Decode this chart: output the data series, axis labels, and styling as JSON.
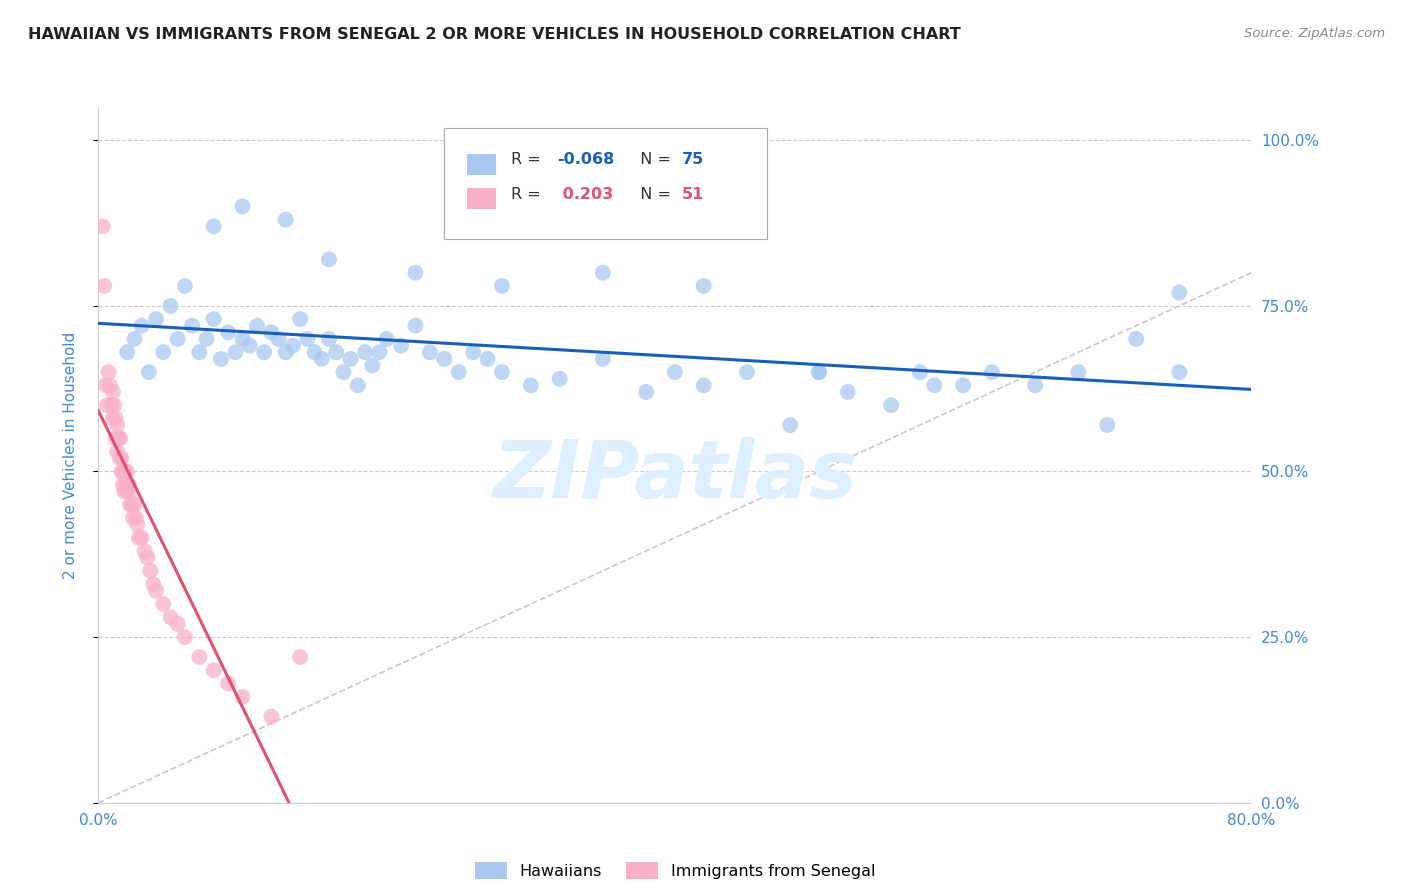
{
  "title": "HAWAIIAN VS IMMIGRANTS FROM SENEGAL 2 OR MORE VEHICLES IN HOUSEHOLD CORRELATION CHART",
  "source_text": "Source: ZipAtlas.com",
  "ylabel": "2 or more Vehicles in Household",
  "xmin": 0.0,
  "xmax": 0.8,
  "ymin": 0.0,
  "ymax": 1.05,
  "yticks": [
    0.0,
    0.25,
    0.5,
    0.75,
    1.0
  ],
  "ytick_labels_right": [
    "0.0%",
    "25.0%",
    "50.0%",
    "75.0%",
    "100.0%"
  ],
  "xtick_positions": [
    0.0,
    0.1,
    0.2,
    0.3,
    0.4,
    0.5,
    0.6,
    0.7,
    0.8
  ],
  "xtick_labels": [
    "0.0%",
    "",
    "",
    "",
    "",
    "",
    "",
    "",
    "80.0%"
  ],
  "hawaiians_R": -0.068,
  "hawaiians_N": 75,
  "senegal_R": 0.203,
  "senegal_N": 51,
  "hawaiians_color": "#a8c8f0",
  "senegal_color": "#f8b0c8",
  "hawaiians_line_color": "#1a5eb8",
  "senegal_line_color": "#e05070",
  "diagonal_color": "#c8c8c8",
  "background_color": "#ffffff",
  "grid_color": "#cccccc",
  "title_color": "#222222",
  "ylabel_color": "#4488cc",
  "tick_label_color": "#4488cc",
  "source_color": "#888888",
  "watermark_color": "#ddeeff",
  "legend_box_color_hawaiians": "#a8c8f0",
  "legend_box_color_senegal": "#f8b0c8",
  "hawaiians_x": [
    0.02,
    0.025,
    0.03,
    0.035,
    0.04,
    0.045,
    0.05,
    0.055,
    0.06,
    0.065,
    0.07,
    0.075,
    0.08,
    0.085,
    0.09,
    0.095,
    0.1,
    0.105,
    0.11,
    0.115,
    0.12,
    0.125,
    0.13,
    0.135,
    0.14,
    0.145,
    0.15,
    0.155,
    0.16,
    0.165,
    0.17,
    0.175,
    0.18,
    0.185,
    0.19,
    0.195,
    0.2,
    0.21,
    0.22,
    0.23,
    0.24,
    0.25,
    0.26,
    0.27,
    0.28,
    0.3,
    0.32,
    0.35,
    0.38,
    0.4,
    0.42,
    0.45,
    0.48,
    0.5,
    0.52,
    0.55,
    0.57,
    0.6,
    0.62,
    0.65,
    0.68,
    0.7,
    0.72,
    0.75,
    0.08,
    0.1,
    0.13,
    0.16,
    0.22,
    0.28,
    0.35,
    0.42,
    0.5,
    0.58,
    0.75
  ],
  "hawaiians_y": [
    0.68,
    0.7,
    0.72,
    0.65,
    0.73,
    0.68,
    0.75,
    0.7,
    0.78,
    0.72,
    0.68,
    0.7,
    0.73,
    0.67,
    0.71,
    0.68,
    0.7,
    0.69,
    0.72,
    0.68,
    0.71,
    0.7,
    0.68,
    0.69,
    0.73,
    0.7,
    0.68,
    0.67,
    0.7,
    0.68,
    0.65,
    0.67,
    0.63,
    0.68,
    0.66,
    0.68,
    0.7,
    0.69,
    0.72,
    0.68,
    0.67,
    0.65,
    0.68,
    0.67,
    0.65,
    0.63,
    0.64,
    0.67,
    0.62,
    0.65,
    0.63,
    0.65,
    0.57,
    0.65,
    0.62,
    0.6,
    0.65,
    0.63,
    0.65,
    0.63,
    0.65,
    0.57,
    0.7,
    0.65,
    0.87,
    0.9,
    0.88,
    0.82,
    0.8,
    0.78,
    0.8,
    0.78,
    0.65,
    0.63,
    0.77
  ],
  "senegal_x": [
    0.003,
    0.004,
    0.005,
    0.006,
    0.007,
    0.008,
    0.009,
    0.01,
    0.01,
    0.011,
    0.012,
    0.012,
    0.013,
    0.013,
    0.014,
    0.015,
    0.015,
    0.016,
    0.016,
    0.017,
    0.017,
    0.018,
    0.018,
    0.019,
    0.02,
    0.02,
    0.021,
    0.022,
    0.022,
    0.023,
    0.024,
    0.025,
    0.026,
    0.027,
    0.028,
    0.03,
    0.032,
    0.034,
    0.036,
    0.038,
    0.04,
    0.045,
    0.05,
    0.055,
    0.06,
    0.07,
    0.08,
    0.09,
    0.1,
    0.12,
    0.14
  ],
  "senegal_y": [
    0.87,
    0.78,
    0.63,
    0.6,
    0.65,
    0.63,
    0.6,
    0.62,
    0.58,
    0.6,
    0.58,
    0.55,
    0.57,
    0.53,
    0.55,
    0.52,
    0.55,
    0.5,
    0.52,
    0.5,
    0.48,
    0.5,
    0.47,
    0.48,
    0.5,
    0.47,
    0.48,
    0.45,
    0.47,
    0.45,
    0.43,
    0.45,
    0.43,
    0.42,
    0.4,
    0.4,
    0.38,
    0.37,
    0.35,
    0.33,
    0.32,
    0.3,
    0.28,
    0.27,
    0.25,
    0.22,
    0.2,
    0.18,
    0.16,
    0.13,
    0.22
  ]
}
